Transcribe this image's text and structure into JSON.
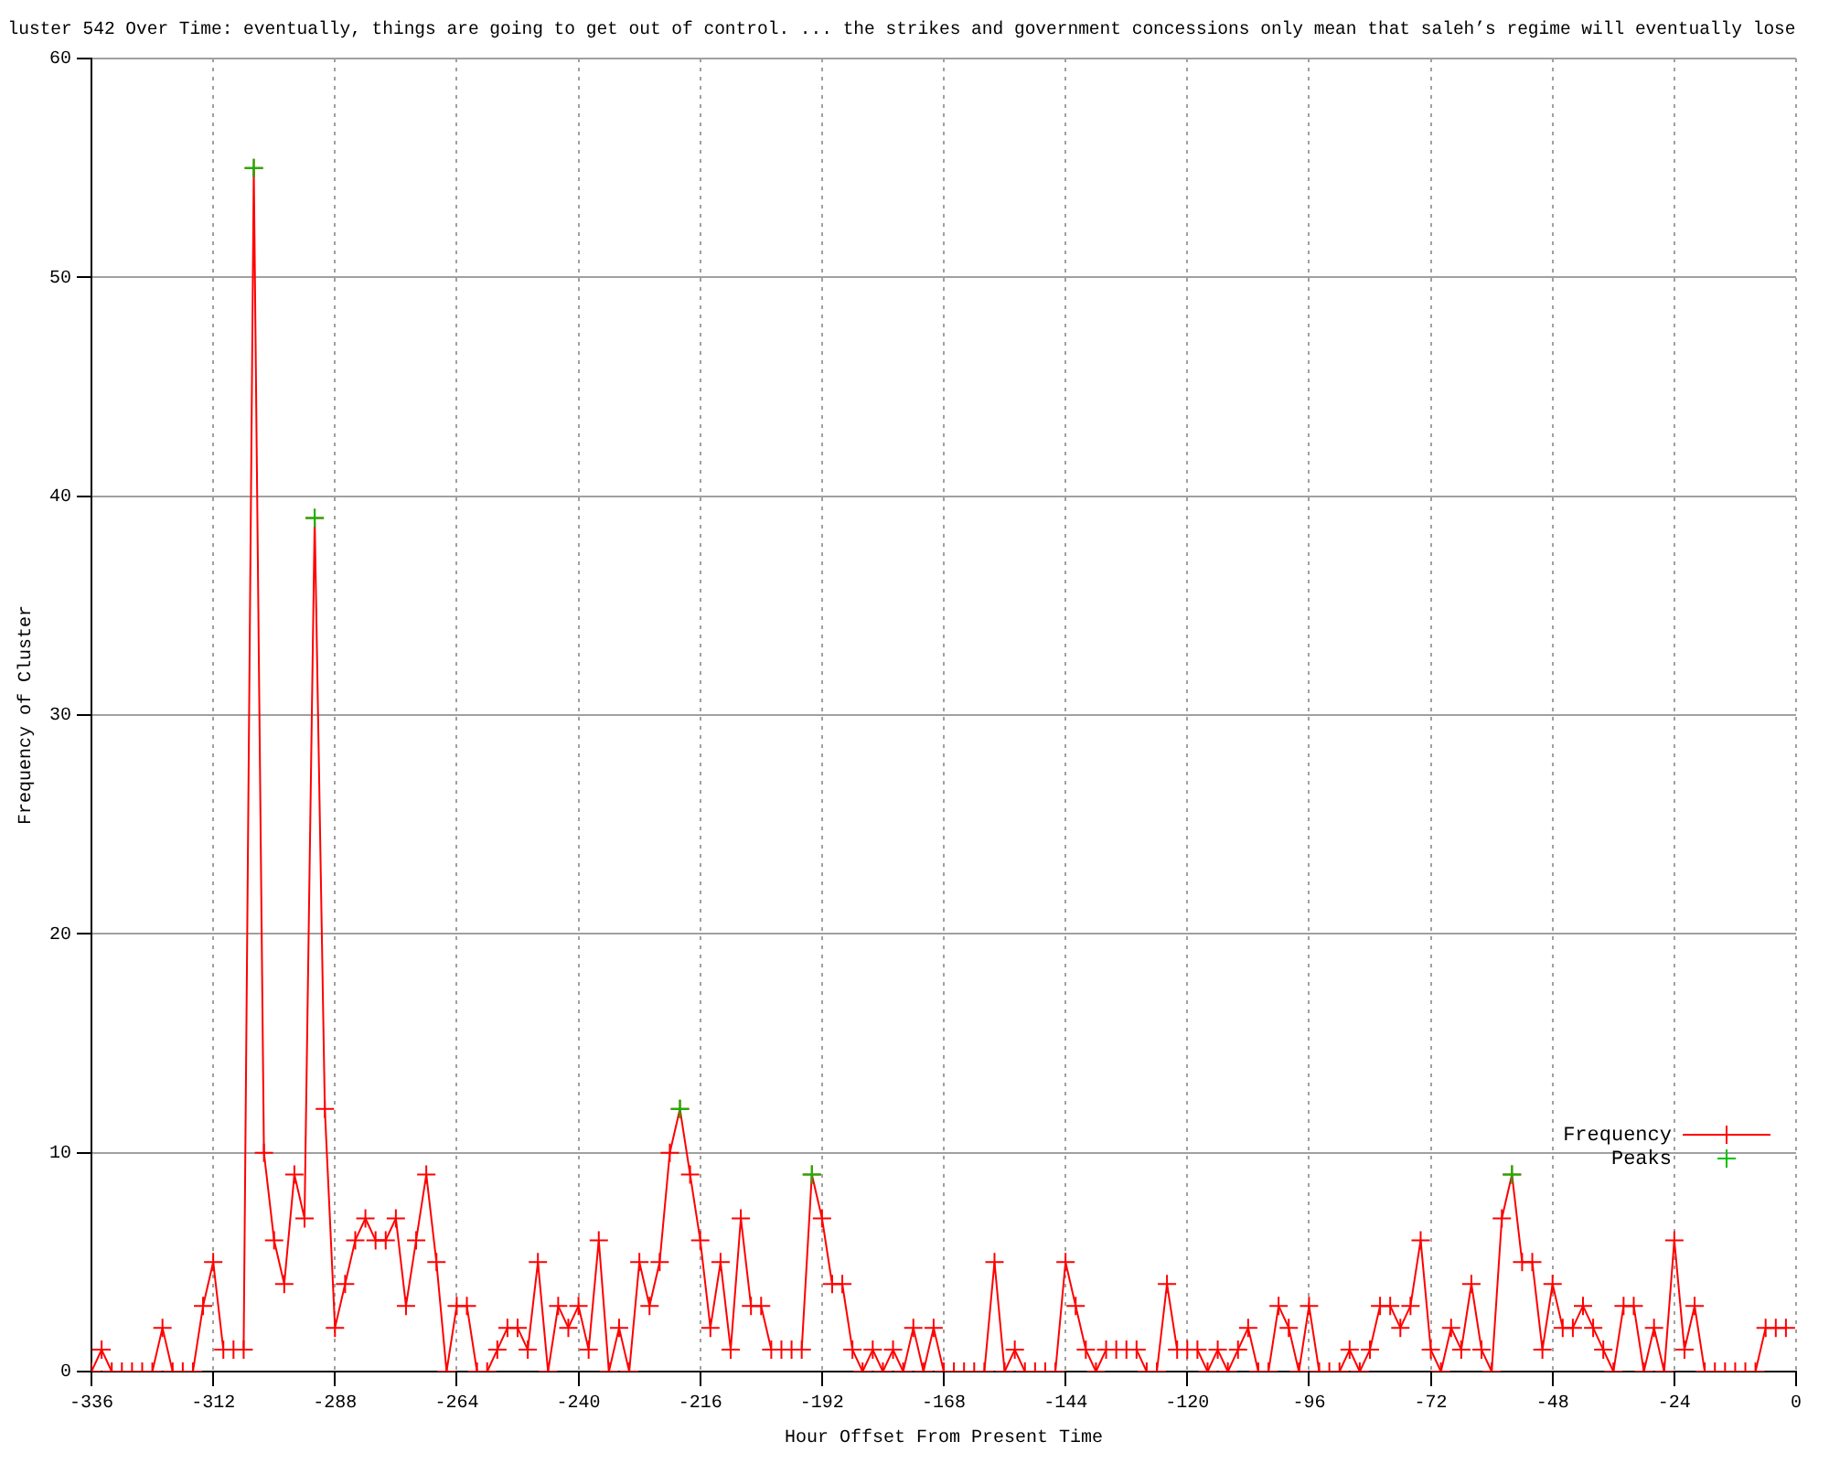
{
  "chart_data": {
    "type": "line",
    "title": "luster 542 Over Time: eventually, things are going to get out of control. ... the strikes and government concessions only mean that saleh’s regime will eventually lose",
    "xlabel": "Hour Offset From Present Time",
    "ylabel": "Frequency of Cluster",
    "x": [
      -336,
      -334,
      -332,
      -330,
      -328,
      -326,
      -324,
      -322,
      -320,
      -318,
      -316,
      -314,
      -312,
      -310,
      -308,
      -306,
      -304,
      -302,
      -300,
      -298,
      -296,
      -294,
      -292,
      -290,
      -288,
      -286,
      -284,
      -282,
      -280,
      -278,
      -276,
      -274,
      -272,
      -270,
      -268,
      -266,
      -264,
      -262,
      -260,
      -258,
      -256,
      -254,
      -252,
      -250,
      -248,
      -246,
      -244,
      -242,
      -240,
      -238,
      -236,
      -234,
      -232,
      -230,
      -228,
      -226,
      -224,
      -222,
      -220,
      -218,
      -216,
      -214,
      -212,
      -210,
      -208,
      -206,
      -204,
      -202,
      -200,
      -198,
      -196,
      -194,
      -192,
      -190,
      -188,
      -186,
      -184,
      -182,
      -180,
      -178,
      -176,
      -174,
      -172,
      -170,
      -168,
      -166,
      -164,
      -162,
      -160,
      -158,
      -156,
      -154,
      -152,
      -150,
      -148,
      -146,
      -144,
      -142,
      -140,
      -138,
      -136,
      -134,
      -132,
      -130,
      -128,
      -126,
      -124,
      -122,
      -120,
      -118,
      -116,
      -114,
      -112,
      -110,
      -108,
      -106,
      -104,
      -102,
      -100,
      -98,
      -96,
      -94,
      -92,
      -90,
      -88,
      -86,
      -84,
      -82,
      -80,
      -78,
      -76,
      -74,
      -72,
      -70,
      -68,
      -66,
      -64,
      -62,
      -60,
      -58,
      -56,
      -54,
      -52,
      -50,
      -48,
      -46,
      -44,
      -42,
      -40,
      -38,
      -36,
      -34,
      -32,
      -30,
      -28,
      -26,
      -24,
      -22,
      -20,
      -18,
      -16,
      -14,
      -12,
      -10,
      -8,
      -6,
      -4,
      -2
    ],
    "series": [
      {
        "name": "Frequency",
        "color": "#ff0000",
        "marker": "cross",
        "values": [
          0,
          1,
          0,
          0,
          0,
          0,
          0,
          2,
          0,
          0,
          0,
          3,
          5,
          1,
          1,
          1,
          55,
          10,
          6,
          4,
          9,
          7,
          39,
          12,
          2,
          4,
          6,
          7,
          6,
          6,
          7,
          3,
          6,
          9,
          5,
          0,
          3,
          3,
          0,
          0,
          1,
          2,
          2,
          1,
          5,
          0,
          3,
          2,
          3,
          1,
          6,
          0,
          2,
          0,
          5,
          3,
          5,
          10,
          12,
          9,
          6,
          2,
          5,
          1,
          7,
          3,
          3,
          1,
          1,
          1,
          1,
          9,
          7,
          4,
          4,
          1,
          0,
          1,
          0,
          1,
          0,
          2,
          0,
          2,
          0,
          0,
          0,
          0,
          0,
          5,
          0,
          1,
          0,
          0,
          0,
          0,
          5,
          3,
          1,
          0,
          1,
          1,
          1,
          1,
          0,
          0,
          4,
          1,
          1,
          1,
          0,
          1,
          0,
          1,
          2,
          0,
          0,
          3,
          2,
          0,
          3,
          0,
          0,
          0,
          1,
          0,
          1,
          3,
          3,
          2,
          3,
          6,
          1,
          0,
          2,
          1,
          4,
          1,
          0,
          7,
          9,
          5,
          5,
          1,
          4,
          2,
          2,
          3,
          2,
          1,
          0,
          3,
          3,
          0,
          2,
          0,
          6,
          1,
          3,
          0,
          0,
          0,
          0,
          0,
          0,
          2,
          2,
          2
        ]
      },
      {
        "name": "Peaks",
        "type": "scatter",
        "color": "#00c000",
        "marker": "cross",
        "x": [
          -304,
          -292,
          -220,
          -194,
          -56
        ],
        "values": [
          55,
          39,
          12,
          9,
          9
        ]
      }
    ],
    "xlim": [
      -336,
      0
    ],
    "xticks": [
      -336,
      -312,
      -288,
      -264,
      -240,
      -216,
      -192,
      -168,
      -144,
      -120,
      -96,
      -72,
      -48,
      -24,
      0
    ],
    "ylim": [
      0,
      60
    ],
    "yticks": [
      0,
      10,
      20,
      30,
      40,
      50,
      60
    ],
    "grid": true,
    "legend": "bottom right",
    "line_style": "solid"
  }
}
